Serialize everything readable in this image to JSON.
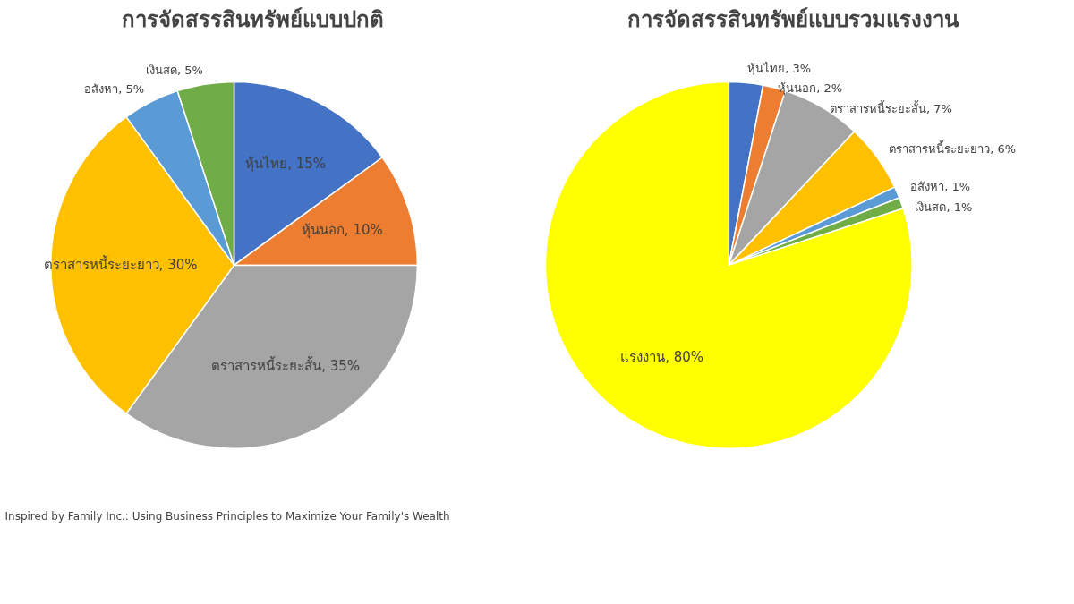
{
  "chart_data": [
    {
      "type": "pie",
      "title": "การจัดสรรสินทรัพย์แบบปกติ",
      "categories": [
        "หุ้นไทย",
        "หุ้นนอก",
        "ตราสารหนี้ระยะสั้น",
        "ตราสารหนี้ระยะยาว",
        "อสังหา",
        "เงินสด"
      ],
      "values": [
        15,
        10,
        35,
        30,
        5,
        5
      ],
      "colors": [
        "#4472c4",
        "#ed7d31",
        "#a5a5a5",
        "#ffc000",
        "#5b9bd5",
        "#70ad47"
      ],
      "value_labels": [
        "15%",
        "10%",
        "35%",
        "30%",
        "5%",
        "5%"
      ],
      "annotations": [
        "Inspired by Family Inc.: Using Business Principles to Maximize Your Family's Wealth"
      ]
    },
    {
      "type": "pie",
      "title": "การจัดสรรสินทรัพย์แบบรวมแรงงาน",
      "categories": [
        "หุ้นไทย",
        "หุ้นนอก",
        "ตราสารหนี้ระยะสั้น",
        "ตราสารหนี้ระยะยาว",
        "อสังหา",
        "เงินสด",
        "แรงงาน"
      ],
      "values": [
        3,
        2,
        7,
        6,
        1,
        1,
        80
      ],
      "colors": [
        "#4472c4",
        "#ed7d31",
        "#a5a5a5",
        "#ffc000",
        "#5b9bd5",
        "#70ad47",
        "#ffff00"
      ],
      "value_labels": [
        "3%",
        "2%",
        "7%",
        "6%",
        "1%",
        "1%",
        "80%"
      ]
    }
  ]
}
